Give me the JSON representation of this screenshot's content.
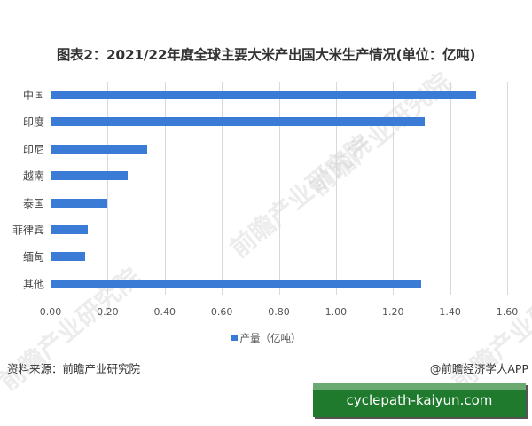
{
  "chart_data": {
    "type": "bar",
    "orientation": "horizontal",
    "title": "图表2：2021/22年度全球主要大米产出国大米生产情况(单位：亿吨)",
    "categories": [
      "中国",
      "印度",
      "印尼",
      "越南",
      "泰国",
      "菲律宾",
      "缅甸",
      "其他"
    ],
    "series": [
      {
        "name": "产量（亿吨）",
        "values": [
          1.49,
          1.31,
          0.34,
          0.27,
          0.2,
          0.13,
          0.12,
          1.3
        ],
        "color": "#3a7bd5"
      }
    ],
    "xlabel": "",
    "ylabel": "",
    "xlim": [
      0,
      1.6
    ],
    "xticks": [
      "0.00",
      "0.20",
      "0.40",
      "0.60",
      "0.80",
      "1.00",
      "1.20",
      "1.40",
      "1.60"
    ],
    "grid": true,
    "legend_position": "bottom"
  },
  "footer": {
    "source": "资料来源：前瞻产业研究院",
    "credit": "@前瞻经济学人APP"
  },
  "overlay": {
    "site_label": "cyclepath-kaiyun.com"
  },
  "watermark": {
    "text": "前瞻产业研究院"
  }
}
